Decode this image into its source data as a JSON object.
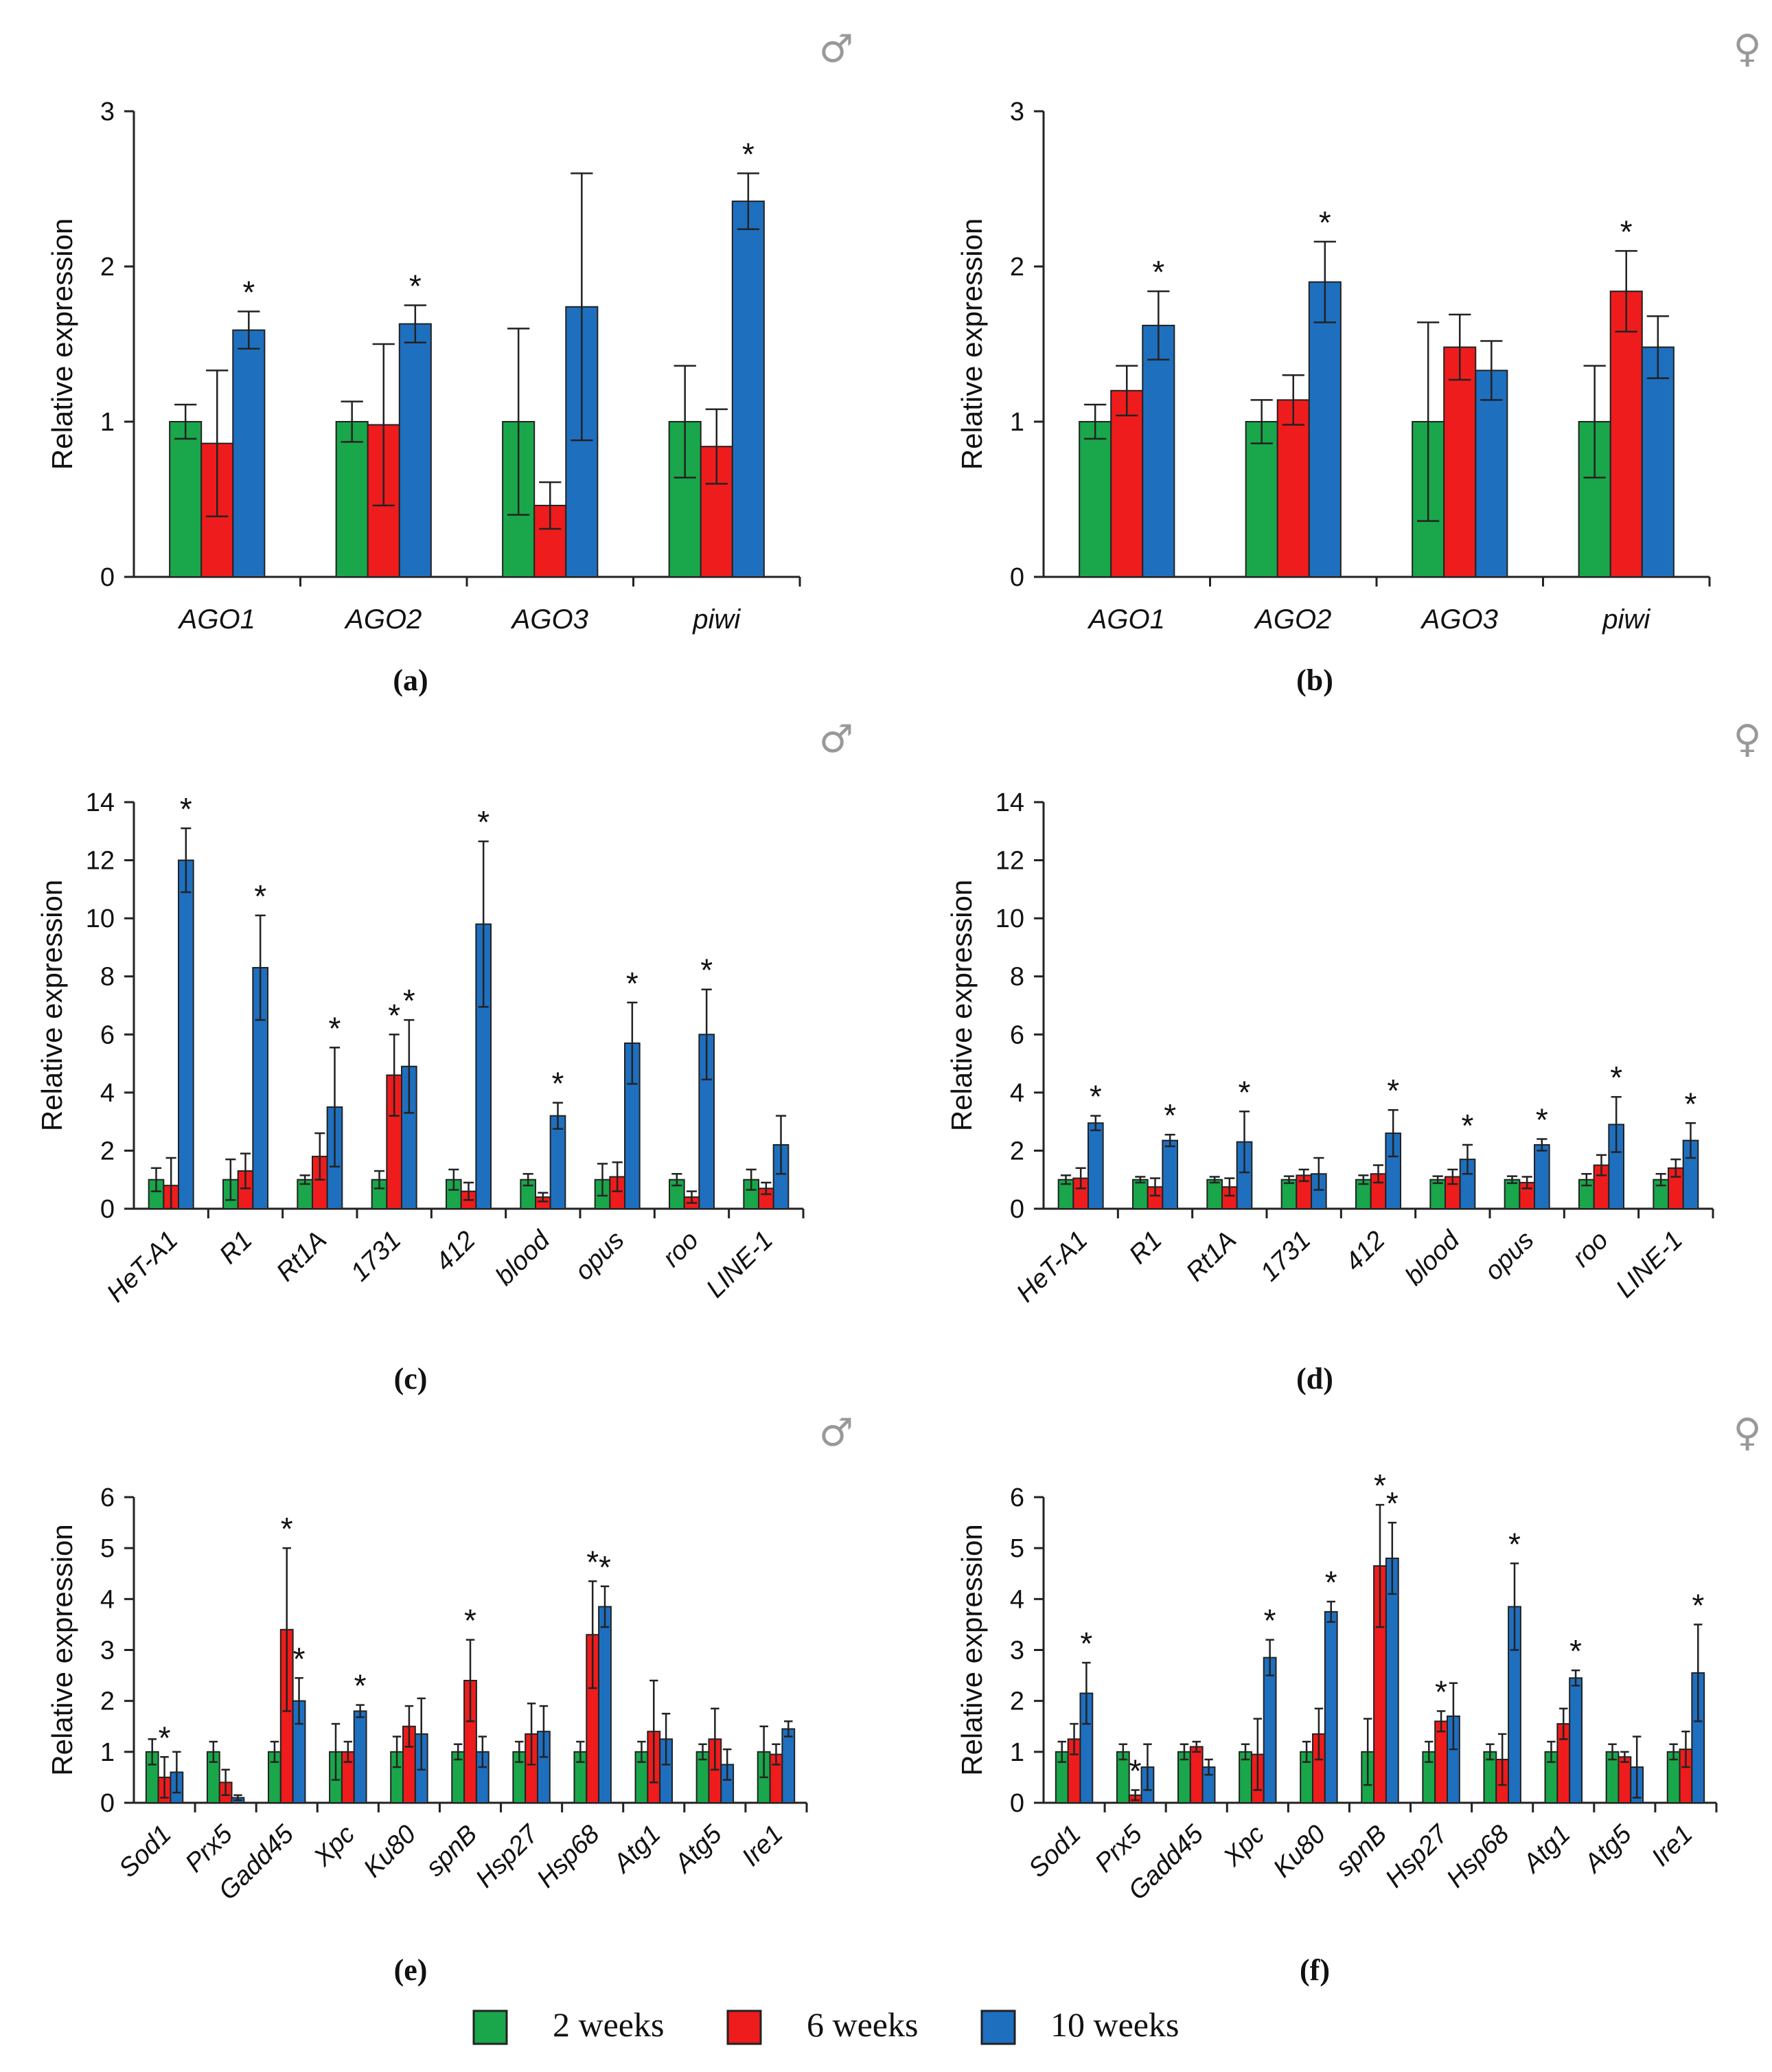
{
  "figure": {
    "legend": [
      {
        "label": "2 weeks",
        "color": "#1aa64a"
      },
      {
        "label": "6 weeks",
        "color": "#ee1c1c"
      },
      {
        "label": "10 weeks",
        "color": "#1f6fbf"
      }
    ],
    "male_symbol": "♂",
    "female_symbol": "♀"
  },
  "chart_data": [
    {
      "id": "a",
      "panel_label": "(a)",
      "sex_symbol": "♂",
      "type": "bar",
      "ylabel": "Relative expression",
      "ylim": [
        0,
        3
      ],
      "yticks": [
        0,
        1,
        2,
        3
      ],
      "categories": [
        "AGO1",
        "AGO2",
        "AGO3",
        "piwi"
      ],
      "series": [
        {
          "name": "2 weeks",
          "values": [
            1.0,
            1.0,
            1.0,
            1.0
          ],
          "errors": [
            0.11,
            0.13,
            0.6,
            0.36
          ]
        },
        {
          "name": "6 weeks",
          "values": [
            0.86,
            0.98,
            0.46,
            0.84
          ],
          "errors": [
            0.47,
            0.52,
            0.15,
            0.24
          ]
        },
        {
          "name": "10 weeks",
          "values": [
            1.59,
            1.63,
            1.74,
            2.42
          ],
          "errors": [
            0.12,
            0.12,
            0.86,
            0.18
          ]
        }
      ],
      "significance": [
        {
          "category": "AGO1",
          "series": "10 weeks",
          "mark": "*"
        },
        {
          "category": "AGO2",
          "series": "10 weeks",
          "mark": "*"
        },
        {
          "category": "piwi",
          "series": "10 weeks",
          "mark": "*"
        }
      ]
    },
    {
      "id": "b",
      "panel_label": "(b)",
      "sex_symbol": "♀",
      "type": "bar",
      "ylabel": "Relative expression",
      "ylim": [
        0,
        3
      ],
      "yticks": [
        0,
        1,
        2,
        3
      ],
      "categories": [
        "AGO1",
        "AGO2",
        "AGO3",
        "piwi"
      ],
      "series": [
        {
          "name": "2 weeks",
          "values": [
            1.0,
            1.0,
            1.0,
            1.0
          ],
          "errors": [
            0.11,
            0.14,
            0.64,
            0.36
          ]
        },
        {
          "name": "6 weeks",
          "values": [
            1.2,
            1.14,
            1.48,
            1.84
          ],
          "errors": [
            0.16,
            0.16,
            0.21,
            0.26
          ]
        },
        {
          "name": "10 weeks",
          "values": [
            1.62,
            1.9,
            1.33,
            1.48
          ],
          "errors": [
            0.22,
            0.26,
            0.19,
            0.2
          ]
        }
      ],
      "significance": [
        {
          "category": "AGO1",
          "series": "10 weeks",
          "mark": "*"
        },
        {
          "category": "AGO2",
          "series": "10 weeks",
          "mark": "*"
        },
        {
          "category": "piwi",
          "series": "6 weeks",
          "mark": "*"
        }
      ]
    },
    {
      "id": "c",
      "panel_label": "(c)",
      "sex_symbol": "♂",
      "type": "bar",
      "ylabel": "Relative expression",
      "ylim": [
        0,
        14
      ],
      "yticks": [
        0,
        2,
        4,
        6,
        8,
        10,
        12,
        14
      ],
      "categories": [
        "HeT-A1",
        "R1",
        "Rt1A",
        "1731",
        "412",
        "blood",
        "opus",
        "roo",
        "LINE-1"
      ],
      "series": [
        {
          "name": "2 weeks",
          "values": [
            1.0,
            1.0,
            1.0,
            1.0,
            1.0,
            1.0,
            1.0,
            1.0,
            1.0
          ],
          "errors": [
            0.4,
            0.7,
            0.15,
            0.3,
            0.35,
            0.2,
            0.55,
            0.2,
            0.35
          ]
        },
        {
          "name": "6 weeks",
          "values": [
            0.8,
            1.3,
            1.8,
            4.6,
            0.6,
            0.4,
            1.1,
            0.4,
            0.7
          ]
        },
        {
          "name": "10 weeks",
          "values": [
            12.0,
            8.3,
            3.5,
            4.9,
            9.8,
            3.2,
            5.7,
            6.0,
            2.2
          ],
          "errors": [
            1.1,
            1.8,
            2.05,
            1.6,
            2.85,
            0.45,
            1.4,
            1.55,
            1.0
          ]
        }
      ],
      "errors_6w": [
        0.95,
        0.6,
        0.8,
        1.4,
        0.3,
        0.15,
        0.5,
        0.2,
        0.2
      ],
      "significance": [
        {
          "category": "HeT-A1",
          "series": "10 weeks",
          "mark": "*"
        },
        {
          "category": "R1",
          "series": "10 weeks",
          "mark": "*"
        },
        {
          "category": "Rt1A",
          "series": "10 weeks",
          "mark": "*"
        },
        {
          "category": "1731",
          "series": "6 weeks",
          "mark": "*"
        },
        {
          "category": "1731",
          "series": "10 weeks",
          "mark": "*"
        },
        {
          "category": "412",
          "series": "10 weeks",
          "mark": "*"
        },
        {
          "category": "blood",
          "series": "10 weeks",
          "mark": "*"
        },
        {
          "category": "opus",
          "series": "10 weeks",
          "mark": "*"
        },
        {
          "category": "roo",
          "series": "10 weeks",
          "mark": "*"
        }
      ]
    },
    {
      "id": "d",
      "panel_label": "(d)",
      "sex_symbol": "♀",
      "type": "bar",
      "ylabel": "Relative expression",
      "ylim": [
        0,
        14
      ],
      "yticks": [
        0,
        2,
        4,
        6,
        8,
        10,
        12,
        14
      ],
      "categories": [
        "HeT-A1",
        "R1",
        "Rt1A",
        "1731",
        "412",
        "blood",
        "opus",
        "roo",
        "LINE-1"
      ],
      "series": [
        {
          "name": "2 weeks",
          "values": [
            1.0,
            1.0,
            1.0,
            1.0,
            1.0,
            1.0,
            1.0,
            1.0,
            1.0
          ],
          "errors": [
            0.15,
            0.1,
            0.1,
            0.12,
            0.15,
            0.12,
            0.12,
            0.2,
            0.2
          ]
        },
        {
          "name": "6 weeks",
          "values": [
            1.05,
            0.75,
            0.75,
            1.15,
            1.2,
            1.1,
            0.9,
            1.5,
            1.4
          ],
          "errors": [
            0.35,
            0.3,
            0.3,
            0.2,
            0.3,
            0.25,
            0.2,
            0.35,
            0.3
          ]
        },
        {
          "name": "10 weeks",
          "values": [
            2.95,
            2.35,
            2.3,
            1.2,
            2.6,
            1.7,
            2.2,
            2.9,
            2.35
          ],
          "errors": [
            0.25,
            0.2,
            1.05,
            0.55,
            0.8,
            0.5,
            0.2,
            0.95,
            0.6
          ]
        }
      ],
      "significance": [
        {
          "category": "HeT-A1",
          "series": "10 weeks",
          "mark": "*"
        },
        {
          "category": "R1",
          "series": "10 weeks",
          "mark": "*"
        },
        {
          "category": "Rt1A",
          "series": "10 weeks",
          "mark": "*"
        },
        {
          "category": "412",
          "series": "10 weeks",
          "mark": "*"
        },
        {
          "category": "blood",
          "series": "10 weeks",
          "mark": "*"
        },
        {
          "category": "opus",
          "series": "10 weeks",
          "mark": "*"
        },
        {
          "category": "roo",
          "series": "10 weeks",
          "mark": "*"
        },
        {
          "category": "LINE-1",
          "series": "10 weeks",
          "mark": "*"
        }
      ]
    },
    {
      "id": "e",
      "panel_label": "(e)",
      "sex_symbol": "♂",
      "type": "bar",
      "ylabel": "Relative expression",
      "ylim": [
        0,
        6
      ],
      "yticks": [
        0,
        1,
        2,
        3,
        4,
        5,
        6
      ],
      "categories": [
        "Sod1",
        "Prx5",
        "Gadd45",
        "Xpc",
        "Ku80",
        "spnB",
        "Hsp27",
        "Hsp68",
        "Atg1",
        "Atg5",
        "Ire1"
      ],
      "series": [
        {
          "name": "2 weeks",
          "values": [
            1.0,
            1.0,
            1.0,
            1.0,
            1.0,
            1.0,
            1.0,
            1.0,
            1.0,
            1.0,
            1.0
          ],
          "errors": [
            0.25,
            0.2,
            0.2,
            0.55,
            0.3,
            0.15,
            0.2,
            0.2,
            0.2,
            0.15,
            0.5
          ]
        },
        {
          "name": "6 weeks",
          "values": [
            0.5,
            0.4,
            3.4,
            1.0,
            1.5,
            2.4,
            1.35,
            3.3,
            1.4,
            1.25,
            0.95
          ]
        },
        {
          "name": "10 weeks",
          "values": [
            0.6,
            0.1,
            2.0,
            1.8,
            1.35,
            1.0,
            1.4,
            3.85,
            1.25,
            0.75,
            1.45
          ],
          "errors": [
            0.4,
            0.05,
            0.45,
            0.12,
            0.7,
            0.3,
            0.5,
            0.4,
            0.5,
            0.3,
            0.15
          ]
        }
      ],
      "errors_6w": [
        0.4,
        0.25,
        1.6,
        0.2,
        0.4,
        0.8,
        0.6,
        1.05,
        1.0,
        0.6,
        0.2
      ],
      "significance": [
        {
          "category": "Sod1",
          "series": "6 weeks",
          "mark": "*"
        },
        {
          "category": "Gadd45",
          "series": "6 weeks",
          "mark": "*"
        },
        {
          "category": "Gadd45",
          "series": "10 weeks",
          "mark": "*"
        },
        {
          "category": "Xpc",
          "series": "10 weeks",
          "mark": "*"
        },
        {
          "category": "spnB",
          "series": "6 weeks",
          "mark": "*"
        },
        {
          "category": "Hsp68",
          "series": "6 weeks",
          "mark": "*"
        },
        {
          "category": "Hsp68",
          "series": "10 weeks",
          "mark": "*"
        }
      ]
    },
    {
      "id": "f",
      "panel_label": "(f)",
      "sex_symbol": "♀",
      "type": "bar",
      "ylabel": "Relative expression",
      "ylim": [
        0,
        6
      ],
      "yticks": [
        0,
        1,
        2,
        3,
        4,
        5,
        6
      ],
      "categories": [
        "Sod1",
        "Prx5",
        "Gadd45",
        "Xpc",
        "Ku80",
        "spnB",
        "Hsp27",
        "Hsp68",
        "Atg1",
        "Atg5",
        "Ire1"
      ],
      "series": [
        {
          "name": "2 weeks",
          "values": [
            1.0,
            1.0,
            1.0,
            1.0,
            1.0,
            1.0,
            1.0,
            1.0,
            1.0,
            1.0,
            1.0
          ],
          "errors": [
            0.2,
            0.15,
            0.15,
            0.15,
            0.2,
            0.65,
            0.2,
            0.15,
            0.2,
            0.15,
            0.15
          ]
        },
        {
          "name": "6 weeks",
          "values": [
            1.25,
            0.15,
            1.1,
            0.95,
            1.35,
            4.65,
            1.6,
            0.85,
            1.55,
            0.9,
            1.05
          ]
        },
        {
          "name": "10 weeks",
          "values": [
            2.15,
            0.7,
            0.7,
            2.85,
            3.75,
            4.8,
            1.7,
            3.85,
            2.45,
            0.7,
            2.55
          ],
          "errors": [
            0.6,
            0.45,
            0.15,
            0.35,
            0.2,
            0.7,
            0.65,
            0.85,
            0.15,
            0.6,
            0.95
          ]
        }
      ],
      "errors_6w": [
        0.3,
        0.1,
        0.1,
        0.7,
        0.5,
        1.2,
        0.2,
        0.5,
        0.3,
        0.1,
        0.35
      ],
      "significance": [
        {
          "category": "Sod1",
          "series": "10 weeks",
          "mark": "*"
        },
        {
          "category": "Prx5",
          "series": "6 weeks",
          "mark": "*"
        },
        {
          "category": "Xpc",
          "series": "10 weeks",
          "mark": "*"
        },
        {
          "category": "Ku80",
          "series": "10 weeks",
          "mark": "*"
        },
        {
          "category": "spnB",
          "series": "6 weeks",
          "mark": "*"
        },
        {
          "category": "spnB",
          "series": "10 weeks",
          "mark": "*"
        },
        {
          "category": "Hsp27",
          "series": "6 weeks",
          "mark": "*"
        },
        {
          "category": "Hsp68",
          "series": "10 weeks",
          "mark": "*"
        },
        {
          "category": "Atg1",
          "series": "10 weeks",
          "mark": "*"
        },
        {
          "category": "Ire1",
          "series": "10 weeks",
          "mark": "*"
        }
      ]
    }
  ]
}
